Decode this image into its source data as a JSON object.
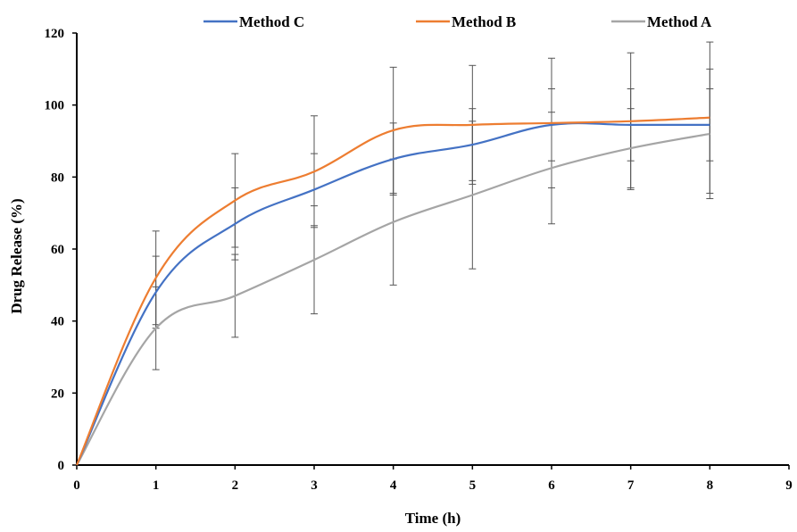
{
  "chart_data": {
    "type": "line",
    "xlabel": "Time (h)",
    "ylabel": "Drug Release (%)",
    "xlim": [
      0,
      9
    ],
    "ylim": [
      0,
      120
    ],
    "xticks": [
      0,
      1,
      2,
      3,
      4,
      5,
      6,
      7,
      8,
      9
    ],
    "yticks": [
      0,
      20,
      40,
      60,
      80,
      100,
      120
    ],
    "grid": false,
    "legend_position": "top",
    "legend_order": [
      "Method C",
      "Method B",
      "Method A"
    ],
    "series": [
      {
        "name": "Method C",
        "color": "#4472C4",
        "x": [
          0,
          1,
          2,
          3,
          4,
          5,
          6,
          7,
          8
        ],
        "y": [
          0,
          48,
          67,
          76.5,
          85,
          89,
          94.5,
          94.5,
          94.5
        ],
        "error": [
          0,
          10,
          10,
          10,
          10,
          10,
          10,
          10,
          10
        ]
      },
      {
        "name": "Method B",
        "color": "#ED7D31",
        "x": [
          0,
          1,
          2,
          3,
          4,
          5,
          6,
          7,
          8
        ],
        "y": [
          0,
          52,
          73.5,
          81.5,
          93,
          94.5,
          95,
          95.5,
          96.5
        ],
        "error": [
          0,
          13,
          13,
          15.5,
          17.5,
          16.5,
          18,
          19,
          21
        ]
      },
      {
        "name": "Method A",
        "color": "#A5A5A5",
        "x": [
          0,
          1,
          2,
          3,
          4,
          5,
          6,
          7,
          8
        ],
        "y": [
          0,
          38,
          47,
          57,
          67.5,
          75,
          82.5,
          88,
          92
        ],
        "error": [
          0,
          11.5,
          11.5,
          15,
          17.5,
          20.5,
          15.5,
          11,
          18
        ]
      }
    ]
  }
}
